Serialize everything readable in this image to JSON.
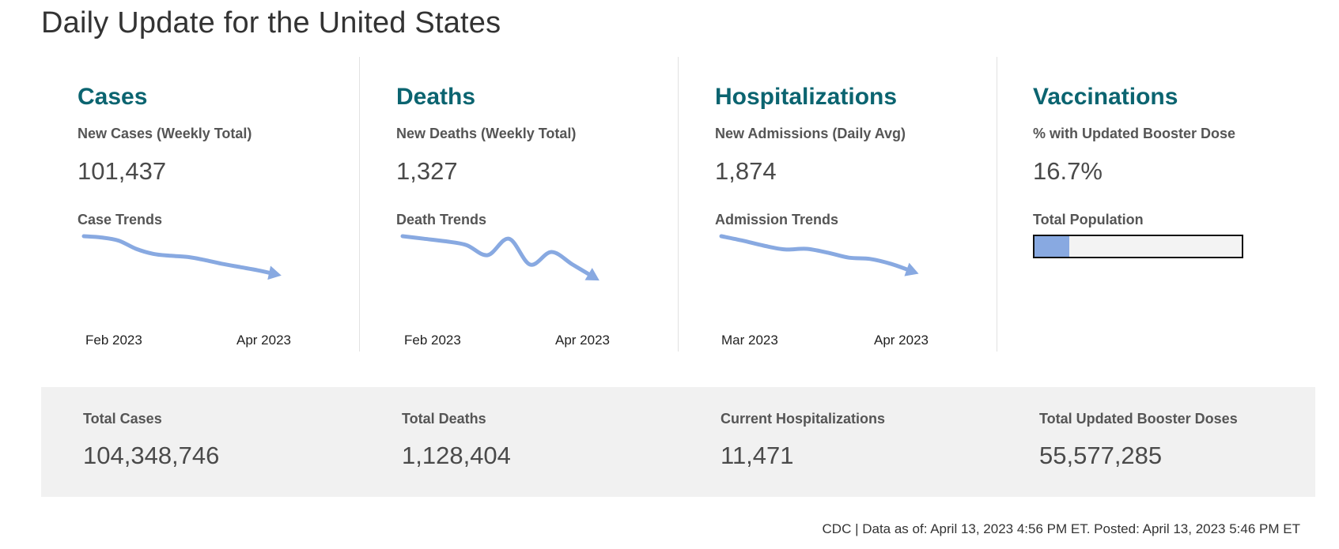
{
  "page": {
    "title": "Daily Update for the United States"
  },
  "accent_color": "#0b6470",
  "trend_color": "#88a9e1",
  "sections": [
    {
      "heading": "Cases",
      "metric_label": "New Cases (Weekly Total)",
      "metric_value": "101,437",
      "trend_label": "Case Trends",
      "axis_labels": [
        "Feb 2023",
        "Apr 2023"
      ]
    },
    {
      "heading": "Deaths",
      "metric_label": "New Deaths (Weekly Total)",
      "metric_value": "1,327",
      "trend_label": "Death Trends",
      "axis_labels": [
        "Feb 2023",
        "Apr 2023"
      ]
    },
    {
      "heading": "Hospitalizations",
      "metric_label": "New Admissions (Daily Avg)",
      "metric_value": "1,874",
      "trend_label": "Admission Trends",
      "axis_labels": [
        "Mar 2023",
        "Apr 2023"
      ]
    },
    {
      "heading": "Vaccinations",
      "metric_label": "% with Updated Booster Dose",
      "metric_value": "16.7%",
      "progress_label": "Total Population",
      "progress_percent": 16.7
    }
  ],
  "chart_data": [
    {
      "type": "line",
      "title": "Case Trends",
      "x_tick_labels": [
        "Feb 2023",
        "Apr 2023"
      ],
      "relative_values": [
        1.0,
        0.98,
        0.93,
        0.8,
        0.72,
        0.69,
        0.67,
        0.62,
        0.56,
        0.51,
        0.46,
        0.4
      ],
      "direction": "decreasing",
      "arrow_at_end": true
    },
    {
      "type": "line",
      "title": "Death Trends",
      "x_tick_labels": [
        "Feb 2023",
        "Apr 2023"
      ],
      "relative_values": [
        1.0,
        0.96,
        0.92,
        0.86,
        0.7,
        0.96,
        0.55,
        0.75,
        0.55,
        0.35
      ],
      "direction": "decreasing",
      "arrow_at_end": true
    },
    {
      "type": "line",
      "title": "Admission Trends",
      "x_tick_labels": [
        "Mar 2023",
        "Apr 2023"
      ],
      "relative_values": [
        1.0,
        0.93,
        0.85,
        0.79,
        0.8,
        0.74,
        0.66,
        0.64,
        0.56,
        0.44
      ],
      "direction": "decreasing",
      "arrow_at_end": true
    }
  ],
  "summary": [
    {
      "label": "Total Cases",
      "value": "104,348,746"
    },
    {
      "label": "Total Deaths",
      "value": "1,128,404"
    },
    {
      "label": "Current Hospitalizations",
      "value": "11,471"
    },
    {
      "label": "Total Updated Booster Doses",
      "value": "55,577,285"
    }
  ],
  "footer": {
    "text": "CDC | Data as of: April 13, 2023 4:56 PM ET. Posted: April 13, 2023 5:46 PM ET"
  }
}
